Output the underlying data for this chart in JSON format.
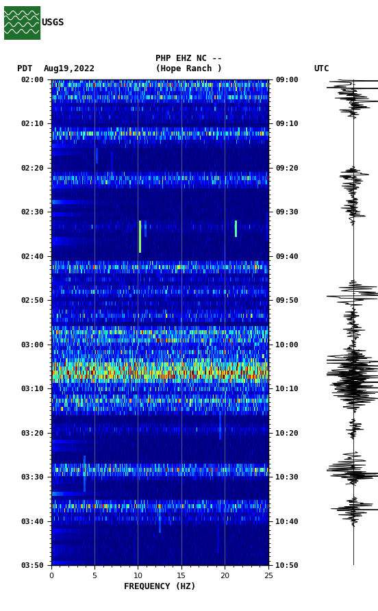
{
  "title_line1": "PHP EHZ NC --",
  "title_line2": "(Hope Ranch )",
  "label_left": "PDT",
  "label_date": "Aug19,2022",
  "label_right": "UTC",
  "xlabel": "FREQUENCY (HZ)",
  "freq_min": 0,
  "freq_max": 25,
  "freq_ticks": [
    0,
    5,
    10,
    15,
    20,
    25
  ],
  "time_left_labels": [
    "02:00",
    "02:10",
    "02:20",
    "02:30",
    "02:40",
    "02:50",
    "03:00",
    "03:10",
    "03:20",
    "03:30",
    "03:40",
    "03:50"
  ],
  "time_right_labels": [
    "09:00",
    "09:10",
    "09:20",
    "09:30",
    "09:40",
    "09:50",
    "10:00",
    "10:10",
    "10:20",
    "10:30",
    "10:40",
    "10:50"
  ],
  "n_time_rows": 120,
  "n_freq_cols": 300,
  "background_color": "#ffffff",
  "usgs_green": "#1f6e2b",
  "grid_color": "#888888",
  "vertical_grid_freqs": [
    5,
    10,
    15,
    20
  ],
  "colormap": "jet"
}
